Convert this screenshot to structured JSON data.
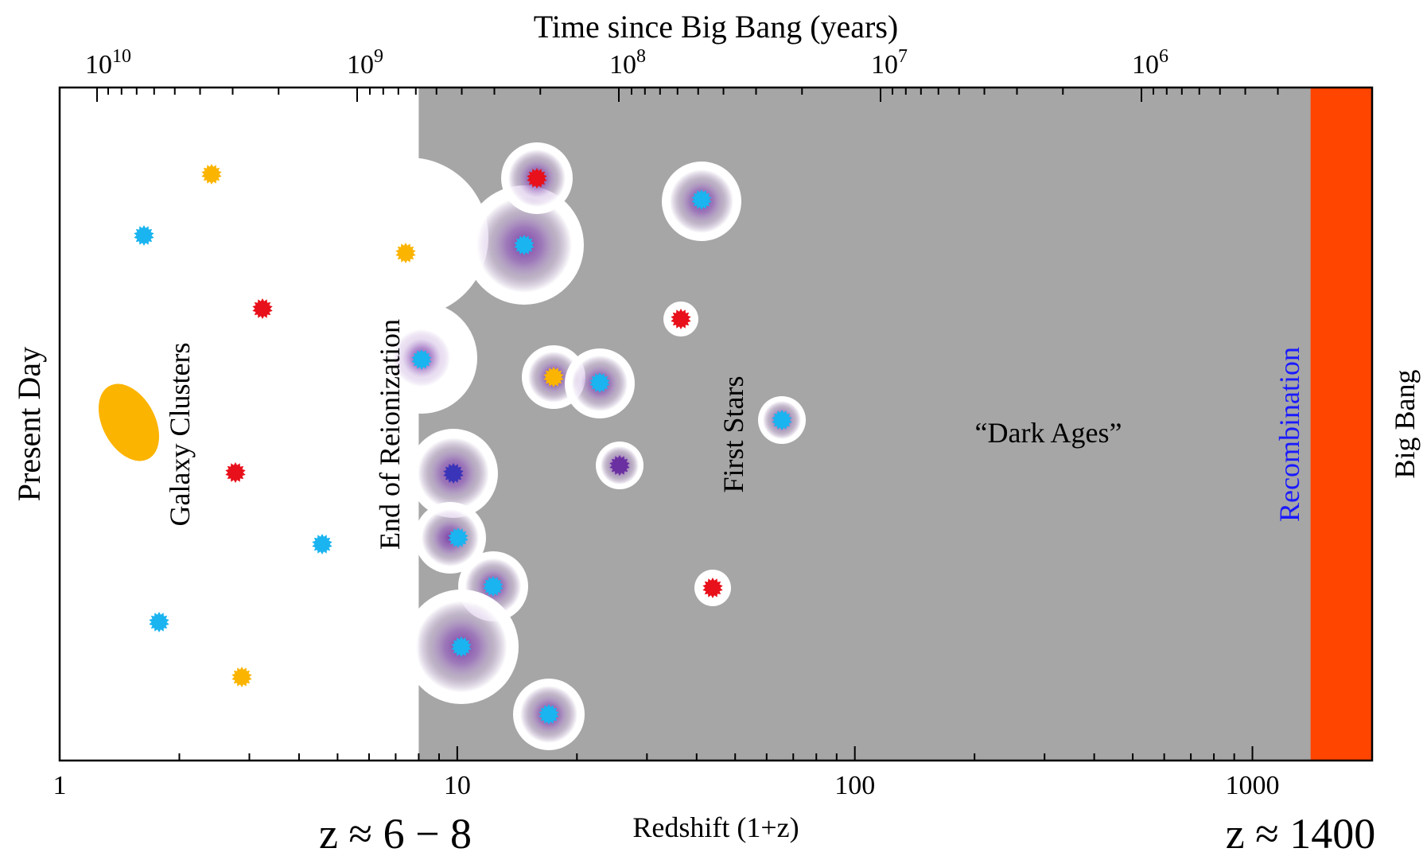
{
  "figure": {
    "top_axis_title": "Time since Big Bang (years)",
    "bottom_axis_title": "Redshift (1+z)",
    "left_label": "Present Day",
    "right_label": "Big Bang",
    "left_equation": "z ≈ 6 − 8",
    "right_equation": "z ≈ 1400",
    "annotations": {
      "galaxy_clusters": "Galaxy Clusters",
      "end_of_reionization": "End of Reionization",
      "first_stars": "First Stars",
      "dark_ages": "“Dark Ages”",
      "recombination": "Recombination"
    }
  },
  "colors": {
    "dark_ages_fill": "#a6a6a6",
    "big_bang_fill": "#ff4500",
    "recombination_text": "#1a1aff",
    "star_blue": "#1ab4f0",
    "star_red": "#e8101a",
    "star_yellow": "#fbb400",
    "star_purple": "#6a2fa0",
    "star_navy": "#3a34b8",
    "halo_purple": "#7a3aa8",
    "galaxy_cluster": "#fbb400"
  },
  "bottom_axis": {
    "scale": "log",
    "range": [
      1,
      2000
    ],
    "major_ticks": [
      {
        "value": 1,
        "label": "1"
      },
      {
        "value": 10,
        "label": "10"
      },
      {
        "value": 100,
        "label": "100"
      },
      {
        "value": 1000,
        "label": "1000"
      }
    ]
  },
  "top_axis": {
    "scale": "log",
    "major_ticks": [
      {
        "base": "10",
        "exp": "10"
      },
      {
        "base": "10",
        "exp": "9"
      },
      {
        "base": "10",
        "exp": "8"
      },
      {
        "base": "10",
        "exp": "7"
      },
      {
        "base": "10",
        "exp": "6"
      }
    ]
  },
  "regions": {
    "reionization_edge_redshift": 8,
    "recombination_redshift": 1400
  }
}
